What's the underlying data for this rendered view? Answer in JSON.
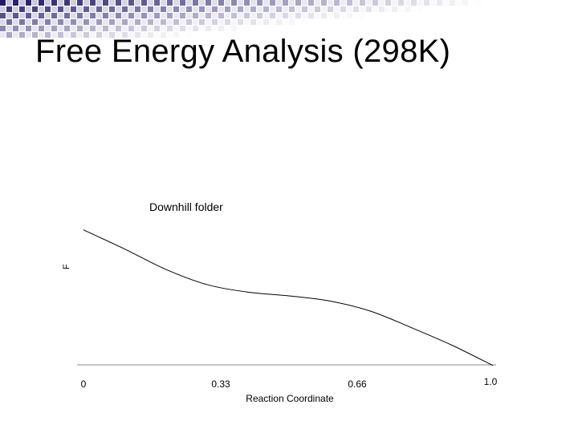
{
  "slide": {
    "title": "Free Energy Analysis (298K)"
  },
  "colors": {
    "checker_dark": "#1f1a66",
    "checker_light": "#ffffff",
    "curve": "#000000",
    "axis": "#888888"
  },
  "chart_data": {
    "type": "line",
    "title": "Downhill folder",
    "xlabel": "Reaction Coordinate",
    "ylabel": "F",
    "xlim": [
      0,
      1
    ],
    "ylim": [
      0,
      1
    ],
    "grid": false,
    "x_ticks": [
      "0",
      "0.33",
      "0.66",
      "1.0"
    ],
    "x_tick_values": [
      0,
      0.33,
      0.66,
      1.0
    ],
    "series": [
      {
        "x": [
          0,
          0.1,
          0.2,
          0.3,
          0.4,
          0.5,
          0.6,
          0.7,
          0.8,
          0.9,
          1.0
        ],
        "y": [
          0.97,
          0.82,
          0.66,
          0.54,
          0.48,
          0.45,
          0.41,
          0.33,
          0.2,
          0.06,
          -0.1
        ]
      }
    ]
  }
}
